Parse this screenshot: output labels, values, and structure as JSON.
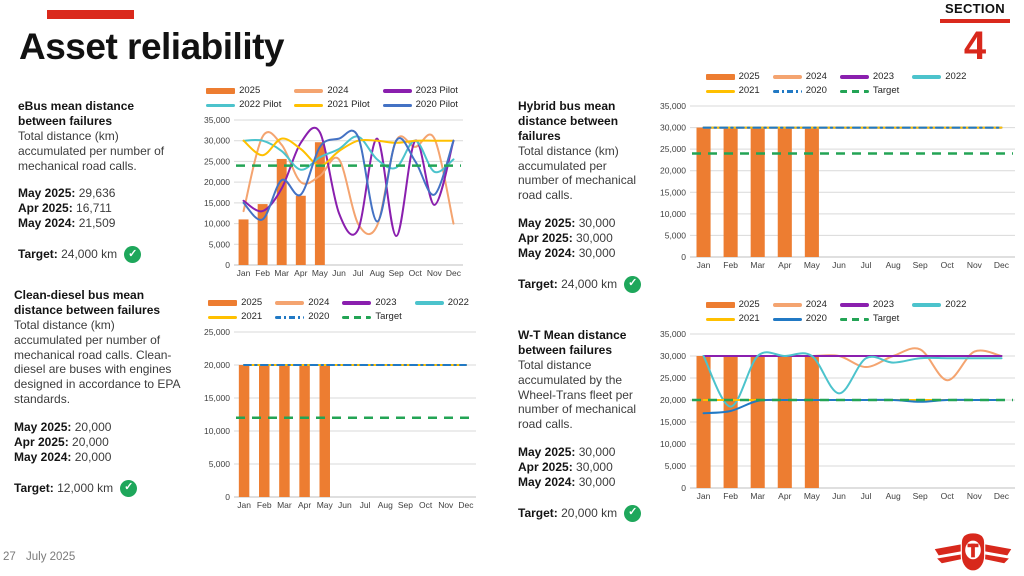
{
  "slide": {
    "title": "Asset reliability",
    "section_label": "SECTION",
    "section_number": "4",
    "footer": {
      "page_number": "27",
      "date": "July 2025"
    },
    "logo": "ttc-logo"
  },
  "colors": {
    "accent_red": "#DA291C",
    "bar_orange": "#ED7D31",
    "salmon": "#F4A470",
    "purple": "#8A1FAE",
    "teal": "#4CC3CC",
    "yellow": "#FFC000",
    "blue_pilot": "#4472C4",
    "blue": "#2179C4",
    "target_green": "#23A455",
    "check_green": "#1EA75B",
    "grid_gray": "#D9D9D9"
  },
  "panels": [
    {
      "heading": "eBus mean distance between failures",
      "description": "Total distance (km) accumulated per number of mechanical road calls.",
      "stats": [
        {
          "label": "May 2025:",
          "value": "29,636"
        },
        {
          "label": "Apr 2025:",
          "value": "16,711"
        },
        {
          "label": "May 2024:",
          "value": "21,509"
        }
      ],
      "target": {
        "label": "Target:",
        "value": "24,000 km",
        "status": "met"
      }
    },
    {
      "heading": "Hybrid bus mean distance between failures",
      "description": "Total distance (km) accumulated per number of mechanical road calls.",
      "stats": [
        {
          "label": "May 2025:",
          "value": "30,000"
        },
        {
          "label": "Apr 2025:",
          "value": "30,000"
        },
        {
          "label": "May 2024:",
          "value": "30,000"
        }
      ],
      "target": {
        "label": "Target:",
        "value": "24,000 km",
        "status": "met"
      }
    },
    {
      "heading": "Clean-diesel bus mean distance between failures",
      "description": "Total distance (km) accumulated per number of mechanical road calls. Clean-diesel are buses with engines designed in accordance to EPA standards.",
      "stats": [
        {
          "label": "May 2025:",
          "value": "20,000"
        },
        {
          "label": "Apr 2025:",
          "value": "20,000"
        },
        {
          "label": "May 2024:",
          "value": "20,000"
        }
      ],
      "target": {
        "label": "Target:",
        "value": "12,000 km",
        "status": "met"
      }
    },
    {
      "heading": "W-T Mean distance between failures",
      "description": "Total distance accumulated by the Wheel-Trans fleet per number of mechanical road calls.",
      "stats": [
        {
          "label": "May 2025:",
          "value": "30,000"
        },
        {
          "label": "Apr 2025:",
          "value": "30,000"
        },
        {
          "label": "May 2024:",
          "value": "30,000"
        }
      ],
      "target": {
        "label": "Target:",
        "value": "20,000 km",
        "status": "met"
      }
    }
  ],
  "chart_data": [
    {
      "title": "eBus mean distance between failures",
      "type": "bar",
      "subtype": "combo-bar-line",
      "grid": "horizontal",
      "legend_position": "top",
      "legend_columns": 3,
      "categories": [
        "Jan",
        "Feb",
        "Mar",
        "Apr",
        "May",
        "Jun",
        "Jul",
        "Aug",
        "Sep",
        "Oct",
        "Nov",
        "Dec"
      ],
      "ylim": [
        0,
        35000
      ],
      "ytick_step": 5000,
      "series": [
        {
          "name": "2025",
          "kind": "bar",
          "color": "#ED7D31",
          "values": [
            11000,
            14700,
            25600,
            16711,
            29636,
            null,
            null,
            null,
            null,
            null,
            null,
            null
          ]
        },
        {
          "name": "2024",
          "kind": "line",
          "style": "solid",
          "color": "#F4A470",
          "values": [
            13000,
            31000,
            29000,
            20000,
            21509,
            25500,
            10000,
            9500,
            30000,
            28500,
            30500,
            10000
          ]
        },
        {
          "name": "2023 Pilot",
          "kind": "line",
          "style": "solid",
          "color": "#8A1FAE",
          "values": [
            15500,
            13000,
            18500,
            29500,
            32000,
            12500,
            8500,
            30500,
            7000,
            30000,
            14500,
            30000
          ]
        },
        {
          "name": "2022 Pilot",
          "kind": "line",
          "style": "solid",
          "color": "#4CC3CC",
          "values": [
            30000,
            30000,
            27500,
            23000,
            26000,
            28000,
            31000,
            25500,
            23500,
            30000,
            22500,
            25500
          ]
        },
        {
          "name": "2021 Pilot",
          "kind": "line",
          "style": "solid",
          "color": "#FFC000",
          "values": [
            30000,
            26500,
            30500,
            28000,
            24000,
            27500,
            30000,
            30000,
            29500,
            30000,
            30000,
            30000
          ]
        },
        {
          "name": "2020 Pilot",
          "kind": "line",
          "style": "solid",
          "color": "#4472C4",
          "values": [
            15000,
            11000,
            20500,
            17000,
            28500,
            30500,
            31000,
            10500,
            30000,
            25000,
            17000,
            30000
          ]
        },
        {
          "name": "Target",
          "kind": "target",
          "style": "dashed",
          "color": "#23A455",
          "value": 24000,
          "show_in_legend": false
        }
      ]
    },
    {
      "title": "Hybrid bus mean distance between failures",
      "type": "bar",
      "subtype": "combo-bar-line",
      "grid": "horizontal",
      "legend_position": "top",
      "legend_columns": 4,
      "categories": [
        "Jan",
        "Feb",
        "Mar",
        "Apr",
        "May",
        "Jun",
        "Jul",
        "Aug",
        "Sep",
        "Oct",
        "Nov",
        "Dec"
      ],
      "ylim": [
        0,
        35000
      ],
      "ytick_step": 5000,
      "series": [
        {
          "name": "2025",
          "kind": "bar",
          "color": "#ED7D31",
          "values": [
            30000,
            30000,
            30000,
            30000,
            30000,
            null,
            null,
            null,
            null,
            null,
            null,
            null
          ]
        },
        {
          "name": "2024",
          "kind": "line",
          "style": "solid",
          "color": "#F4A470",
          "values": [
            30000,
            30000,
            30000,
            30000,
            30000,
            30000,
            30000,
            30000,
            30000,
            30000,
            30000,
            30000
          ]
        },
        {
          "name": "2023",
          "kind": "line",
          "style": "solid",
          "color": "#8A1FAE",
          "values": [
            30000,
            30000,
            30000,
            30000,
            30000,
            30000,
            30000,
            30000,
            30000,
            30000,
            30000,
            30000
          ]
        },
        {
          "name": "2022",
          "kind": "line",
          "style": "solid",
          "color": "#4CC3CC",
          "values": [
            30000,
            30000,
            30000,
            30000,
            30000,
            30000,
            30000,
            30000,
            30000,
            30000,
            30000,
            30000
          ]
        },
        {
          "name": "2021",
          "kind": "line",
          "style": "solid",
          "color": "#FFC000",
          "values": [
            30000,
            30000,
            30000,
            30000,
            30000,
            30000,
            30000,
            30000,
            30000,
            30000,
            30000,
            30000
          ]
        },
        {
          "name": "2020",
          "kind": "line",
          "style": "dashdot",
          "color": "#2179C4",
          "values": [
            30000,
            30000,
            30000,
            30000,
            30000,
            30000,
            30000,
            30000,
            30000,
            30000,
            30000,
            30000
          ]
        },
        {
          "name": "Target",
          "kind": "target",
          "style": "dashed",
          "color": "#23A455",
          "value": 24000,
          "show_in_legend": true
        }
      ]
    },
    {
      "title": "Clean-diesel bus mean distance between failures",
      "type": "bar",
      "subtype": "combo-bar-line",
      "grid": "horizontal",
      "legend_position": "top",
      "legend_columns": 4,
      "categories": [
        "Jan",
        "Feb",
        "Mar",
        "Apr",
        "May",
        "Jun",
        "Jul",
        "Aug",
        "Sep",
        "Oct",
        "Nov",
        "Dec"
      ],
      "ylim": [
        0,
        25000
      ],
      "ytick_step": 5000,
      "series": [
        {
          "name": "2025",
          "kind": "bar",
          "color": "#ED7D31",
          "values": [
            20000,
            20000,
            20000,
            20000,
            20000,
            null,
            null,
            null,
            null,
            null,
            null,
            null
          ]
        },
        {
          "name": "2024",
          "kind": "line",
          "style": "solid",
          "color": "#F4A470",
          "values": [
            20000,
            20000,
            20000,
            20000,
            20000,
            20000,
            20000,
            20000,
            20000,
            20000,
            20000,
            20000
          ]
        },
        {
          "name": "2023",
          "kind": "line",
          "style": "solid",
          "color": "#8A1FAE",
          "values": [
            20000,
            20000,
            20000,
            20000,
            20000,
            20000,
            20000,
            20000,
            20000,
            20000,
            20000,
            20000
          ]
        },
        {
          "name": "2022",
          "kind": "line",
          "style": "solid",
          "color": "#4CC3CC",
          "values": [
            20000,
            20000,
            20000,
            20000,
            20000,
            20000,
            20000,
            20000,
            20000,
            20000,
            20000,
            20000
          ]
        },
        {
          "name": "2021",
          "kind": "line",
          "style": "solid",
          "color": "#FFC000",
          "values": [
            20000,
            20000,
            20000,
            20000,
            20000,
            20000,
            20000,
            20000,
            20000,
            20000,
            20000,
            20000
          ]
        },
        {
          "name": "2020",
          "kind": "line",
          "style": "dashdot",
          "color": "#2179C4",
          "values": [
            20000,
            20000,
            20000,
            20000,
            20000,
            20000,
            20000,
            20000,
            20000,
            20000,
            20000,
            20000
          ]
        },
        {
          "name": "Target",
          "kind": "target",
          "style": "dashed",
          "color": "#23A455",
          "value": 12000,
          "show_in_legend": true
        }
      ]
    },
    {
      "title": "W-T Mean distance between failures",
      "type": "bar",
      "subtype": "combo-bar-line",
      "grid": "horizontal",
      "legend_position": "top",
      "legend_columns": 4,
      "categories": [
        "Jan",
        "Feb",
        "Mar",
        "Apr",
        "May",
        "Jun",
        "Jul",
        "Aug",
        "Sep",
        "Oct",
        "Nov",
        "Dec"
      ],
      "ylim": [
        0,
        35000
      ],
      "ytick_step": 5000,
      "series": [
        {
          "name": "2025",
          "kind": "bar",
          "color": "#ED7D31",
          "values": [
            30000,
            30000,
            30000,
            30000,
            30000,
            null,
            null,
            null,
            null,
            null,
            null,
            null
          ]
        },
        {
          "name": "2024",
          "kind": "line",
          "style": "solid",
          "color": "#F4A470",
          "values": [
            30000,
            30000,
            30000,
            30000,
            30000,
            30000,
            27500,
            30000,
            31500,
            24500,
            31000,
            30000
          ]
        },
        {
          "name": "2023",
          "kind": "line",
          "style": "solid",
          "color": "#8A1FAE",
          "values": [
            30000,
            30000,
            30000,
            30000,
            30000,
            30000,
            30000,
            30000,
            30000,
            30000,
            30000,
            30000
          ]
        },
        {
          "name": "2022",
          "kind": "line",
          "style": "solid",
          "color": "#4CC3CC",
          "values": [
            30000,
            18500,
            30000,
            30000,
            30000,
            21500,
            29500,
            28500,
            29500,
            29500,
            29500,
            29500
          ]
        },
        {
          "name": "2021",
          "kind": "line",
          "style": "solid",
          "color": "#FFC000",
          "values": [
            20000,
            20000,
            20000,
            20000,
            20000,
            20000,
            20000,
            20000,
            20000,
            20000,
            20000,
            20000
          ]
        },
        {
          "name": "2020",
          "kind": "line",
          "style": "solid",
          "color": "#2179C4",
          "values": [
            17000,
            17500,
            19800,
            20000,
            20000,
            20000,
            20000,
            20000,
            19600,
            20000,
            20000,
            20000
          ]
        },
        {
          "name": "Target",
          "kind": "target",
          "style": "dashed",
          "color": "#23A455",
          "value": 20000,
          "show_in_legend": true
        }
      ]
    }
  ]
}
